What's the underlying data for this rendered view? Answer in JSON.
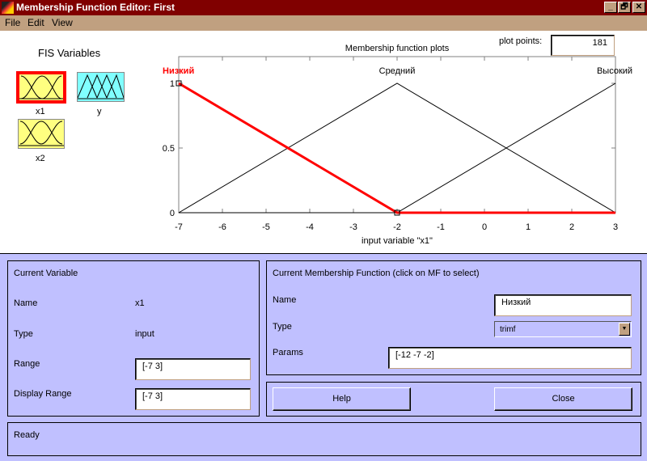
{
  "window": {
    "title": "Membership Function Editor: First",
    "buttons": [
      "_",
      "🗗",
      "✕"
    ]
  },
  "menu": [
    "File",
    "Edit",
    "View"
  ],
  "fis": {
    "title": "FIS Variables",
    "variables": [
      {
        "name": "x1",
        "kind": "input",
        "selected": true
      },
      {
        "name": "y",
        "kind": "output"
      },
      {
        "name": "x2",
        "kind": "input"
      }
    ]
  },
  "plot": {
    "title": "Membership function plots",
    "plot_points_label": "plot points:",
    "plot_points": "181",
    "xlabel": "input variable \"x1\"",
    "xlim": [
      -7,
      3
    ],
    "ylim": [
      0,
      1
    ],
    "xticks": [
      "-7",
      "-6",
      "-5",
      "-4",
      "-3",
      "-2",
      "-1",
      "0",
      "1",
      "2",
      "3"
    ],
    "yticks": [
      "0",
      "0.5",
      "1"
    ],
    "selected_color": "#ff0000",
    "mfs": [
      {
        "name": "Низкий",
        "type": "trimf",
        "params": [
          -12,
          -7,
          -2
        ],
        "selected": true
      },
      {
        "name": "Средний",
        "type": "trimf",
        "params": [
          -7,
          -2,
          3
        ]
      },
      {
        "name": "Высокий",
        "type": "trimf",
        "params": [
          -2,
          3,
          8
        ]
      }
    ]
  },
  "current_variable": {
    "title": "Current Variable",
    "name_label": "Name",
    "name": "x1",
    "type_label": "Type",
    "type": "input",
    "range_label": "Range",
    "range": "[-7 3]",
    "display_range_label": "Display Range",
    "display_range": "[-7 3]"
  },
  "current_mf": {
    "title": "Current Membership Function (click on MF to select)",
    "name_label": "Name",
    "name": "Низкий",
    "type_label": "Type",
    "type": "trimf",
    "params_label": "Params",
    "params": "[-12 -7 -2]"
  },
  "buttons": {
    "help": "Help",
    "close": "Close"
  },
  "status": "Ready",
  "colors": {
    "titlebar": "#800000",
    "menubar": "#c0a080",
    "panel": "#c0c0ff",
    "input_icon": "#ffff80",
    "output_icon": "#80ffff"
  }
}
